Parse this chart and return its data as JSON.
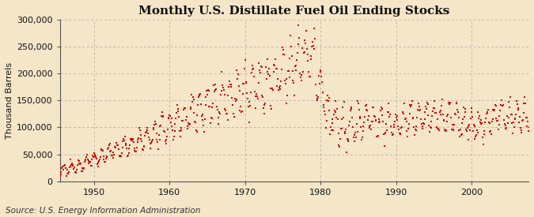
{
  "title": "Monthly U.S. Distillate Fuel Oil Ending Stocks",
  "ylabel": "Thousand Barrels",
  "source_text": "Source: U.S. Energy Information Administration",
  "background_color": "#f5e6c8",
  "plot_bg_color": "#f5e6c8",
  "marker_color": "#dd0000",
  "marker": "s",
  "marker_size": 3.5,
  "xmin": 1945.5,
  "xmax": 2007.5,
  "ymin": 0,
  "ymax": 300000,
  "yticks": [
    0,
    50000,
    100000,
    150000,
    200000,
    250000,
    300000
  ],
  "xticks": [
    1950,
    1960,
    1970,
    1980,
    1990,
    2000
  ],
  "title_fontsize": 11,
  "ylabel_fontsize": 8,
  "tick_fontsize": 8,
  "source_fontsize": 7.5
}
